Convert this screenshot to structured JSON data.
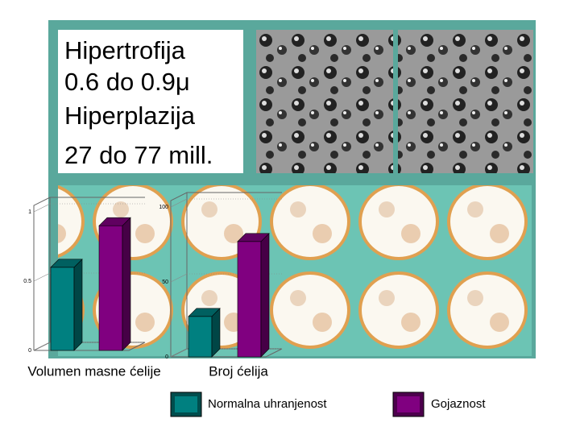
{
  "text_box": {
    "lines": [
      "Hipertrofija",
      "0.6 do 0.9μ",
      "Hiperplazija",
      "27 do 77 mill."
    ]
  },
  "chart_data": [
    {
      "type": "bar3d",
      "x_label": "Volumen masne ćelije",
      "series": [
        {
          "name": "Normalna uhranjenost",
          "color": "#008080",
          "values": [
            0.6
          ]
        },
        {
          "name": "Gojaznost",
          "color": "#800080",
          "values": [
            0.9
          ]
        }
      ],
      "ylim": [
        0,
        1
      ],
      "yticks": [
        0,
        {
          "value": 0.5,
          "label": "0.5"
        },
        1
      ]
    },
    {
      "type": "bar3d",
      "x_label": "Broj ćelija",
      "series": [
        {
          "color": "#008080",
          "values": [
            27
          ]
        },
        {
          "color": "#800080",
          "values": [
            77
          ]
        }
      ],
      "ylim": [
        0,
        100
      ],
      "yticks": [
        0,
        50,
        100
      ]
    }
  ]
}
